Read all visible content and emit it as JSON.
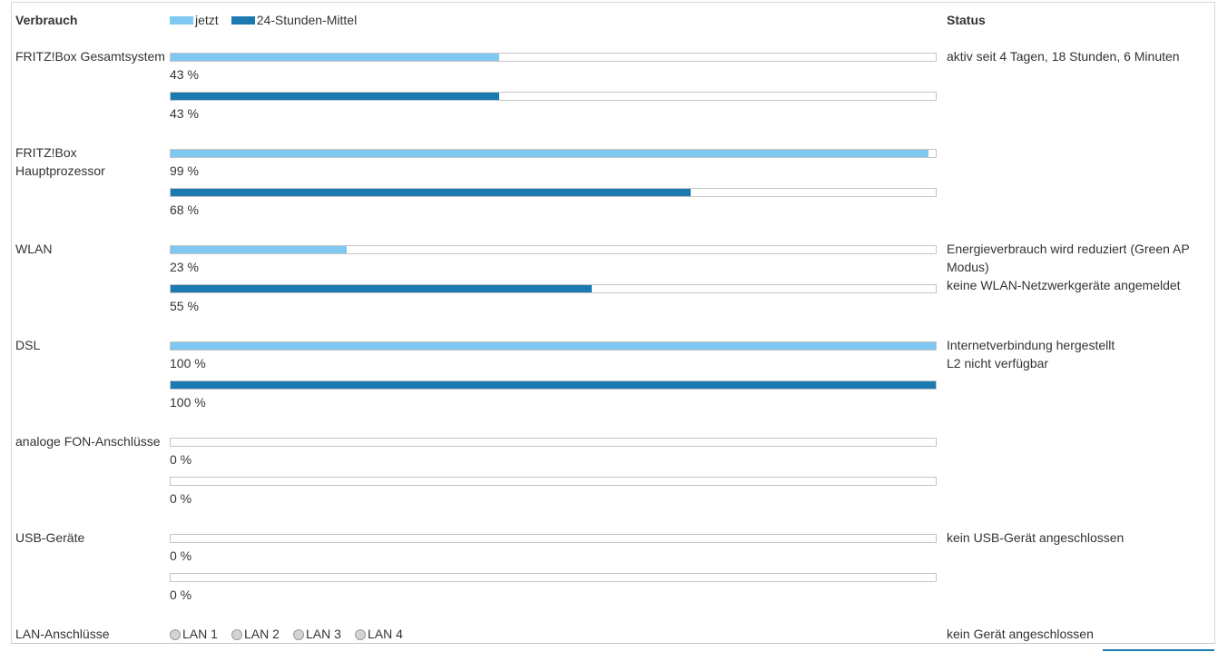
{
  "header": {
    "consumption": "Verbrauch",
    "status": "Status"
  },
  "legend": [
    {
      "label": "jetzt",
      "color": "#7ec8f1"
    },
    {
      "label": "24-Stunden-Mittel",
      "color": "#1b7bb1"
    }
  ],
  "range": [
    0,
    100
  ],
  "rows": [
    {
      "label": "FRITZ!Box Gesamtsystem",
      "now": {
        "value": 43,
        "label": "43 %"
      },
      "avg": {
        "value": 43,
        "label": "43 %"
      },
      "status": [
        "aktiv seit 4 Tagen, 18 Stunden, 6 Minuten"
      ]
    },
    {
      "label": "FRITZ!Box Hauptprozessor",
      "now": {
        "value": 99,
        "label": "99 %"
      },
      "avg": {
        "value": 68,
        "label": "68 %"
      },
      "status": []
    },
    {
      "label": "WLAN",
      "now": {
        "value": 23,
        "label": "23 %"
      },
      "avg": {
        "value": 55,
        "label": "55 %"
      },
      "status": [
        "Energieverbrauch wird reduziert (Green AP Modus)",
        "keine WLAN-Netzwerkgeräte angemeldet"
      ]
    },
    {
      "label": "DSL",
      "now": {
        "value": 100,
        "label": "100 %"
      },
      "avg": {
        "value": 100,
        "label": "100 %"
      },
      "status": [
        "Internetverbindung hergestellt",
        "L2 nicht verfügbar"
      ]
    },
    {
      "label": "analoge FON-Anschlüsse",
      "now": {
        "value": 0,
        "label": "0 %"
      },
      "avg": {
        "value": 0,
        "label": "0 %"
      },
      "status": []
    },
    {
      "label": "USB-Geräte",
      "now": {
        "value": 0,
        "label": "0 %"
      },
      "avg": {
        "value": 0,
        "label": "0 %"
      },
      "status": [
        "kein USB-Gerät angeschlossen"
      ]
    }
  ],
  "lan": {
    "label": "LAN-Anschlüsse",
    "ports": [
      "LAN 1",
      "LAN 2",
      "LAN 3",
      "LAN 4"
    ],
    "status": "kein Gerät angeschlossen"
  }
}
